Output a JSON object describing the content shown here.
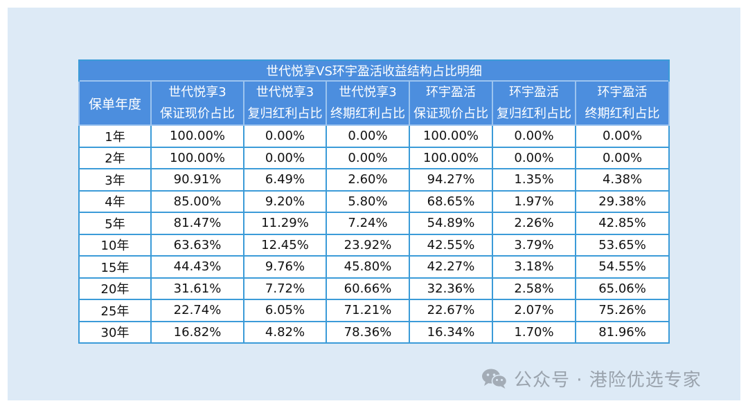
{
  "table": {
    "title": "世代悦享VS环宇盈活收益结构占比明细",
    "headers": [
      {
        "line1": "保单年度",
        "line2": ""
      },
      {
        "line1": "世代悦享3",
        "line2": "保证现价占比"
      },
      {
        "line1": "世代悦享3",
        "line2": "复归红利占比"
      },
      {
        "line1": "世代悦享3",
        "line2": "终期红利占比"
      },
      {
        "line1": "环宇盈活",
        "line2": "保证现价占比"
      },
      {
        "line1": "环宇盈活",
        "line2": "复归红利占比"
      },
      {
        "line1": "环宇盈活",
        "line2": "终期红利占比"
      }
    ],
    "rows": [
      [
        "1年",
        "100.00%",
        "0.00%",
        "0.00%",
        "100.00%",
        "0.00%",
        "0.00%"
      ],
      [
        "2年",
        "100.00%",
        "0.00%",
        "0.00%",
        "100.00%",
        "0.00%",
        "0.00%"
      ],
      [
        "3年",
        "90.91%",
        "6.49%",
        "2.60%",
        "94.27%",
        "1.35%",
        "4.38%"
      ],
      [
        "4年",
        "85.00%",
        "9.20%",
        "5.80%",
        "68.65%",
        "1.97%",
        "29.38%"
      ],
      [
        "5年",
        "81.47%",
        "11.29%",
        "7.24%",
        "54.89%",
        "2.26%",
        "42.85%"
      ],
      [
        "10年",
        "63.63%",
        "12.45%",
        "23.92%",
        "42.55%",
        "3.79%",
        "53.65%"
      ],
      [
        "15年",
        "44.43%",
        "9.76%",
        "45.80%",
        "42.27%",
        "3.18%",
        "54.55%"
      ],
      [
        "20年",
        "31.61%",
        "7.72%",
        "60.66%",
        "32.36%",
        "2.58%",
        "65.06%"
      ],
      [
        "25年",
        "22.74%",
        "6.05%",
        "71.21%",
        "22.67%",
        "2.07%",
        "75.26%"
      ],
      [
        "30年",
        "16.82%",
        "4.82%",
        "78.36%",
        "16.34%",
        "1.70%",
        "81.96%"
      ]
    ]
  },
  "watermark": {
    "icon": "wechat-icon",
    "text": "公众号 · 港险优选专家"
  },
  "colors": {
    "background_panel": "#ddeaf6",
    "header_fill": "#4c8ede",
    "border": "#3b9bd8",
    "watermark_text": "#9aa3ad"
  }
}
